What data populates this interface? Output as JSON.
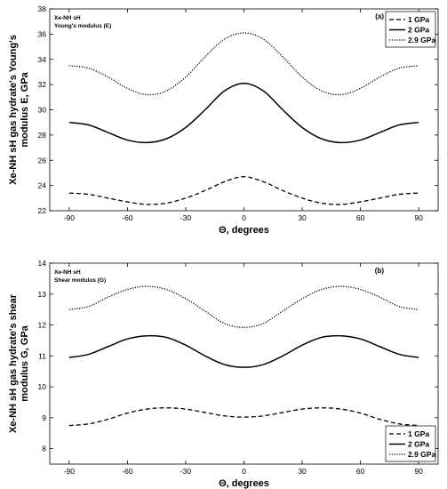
{
  "chart_data": [
    {
      "type": "line",
      "panel_label": "(a)",
      "annotation": [
        "Xe-NH sH",
        "Young's modulus (E)"
      ],
      "xlabel": "Θ, degrees",
      "ylabel": [
        "Xe-NH sH gas hydrate's Young's",
        "modulus E, GPa"
      ],
      "xlim": [
        -100,
        100
      ],
      "ylim": [
        22,
        38
      ],
      "xticks": [
        -90,
        -60,
        -30,
        0,
        30,
        60,
        90
      ],
      "yticks": [
        22,
        24,
        26,
        28,
        30,
        32,
        34,
        36,
        38
      ],
      "legend_position": "top-right",
      "series": [
        {
          "name": "1 GPa",
          "style": "dashed",
          "x": [
            -90,
            -80,
            -70,
            -60,
            -50,
            -40,
            -30,
            -20,
            -10,
            0,
            10,
            20,
            30,
            40,
            50,
            60,
            70,
            80,
            90
          ],
          "y": [
            23.4,
            23.3,
            23.0,
            22.7,
            22.5,
            22.6,
            23.0,
            23.6,
            24.3,
            24.7,
            24.3,
            23.6,
            23.0,
            22.6,
            22.5,
            22.7,
            23.0,
            23.3,
            23.4
          ]
        },
        {
          "name": "2 GPa",
          "style": "solid",
          "x": [
            -90,
            -80,
            -70,
            -60,
            -50,
            -40,
            -30,
            -20,
            -10,
            0,
            10,
            20,
            30,
            40,
            50,
            60,
            70,
            80,
            90
          ],
          "y": [
            29.0,
            28.8,
            28.2,
            27.6,
            27.4,
            27.7,
            28.6,
            30.0,
            31.5,
            32.1,
            31.5,
            30.0,
            28.6,
            27.7,
            27.4,
            27.6,
            28.2,
            28.8,
            29.0
          ]
        },
        {
          "name": "2.9 GPa",
          "style": "dotted",
          "x": [
            -90,
            -80,
            -70,
            -60,
            -50,
            -40,
            -30,
            -20,
            -10,
            0,
            10,
            20,
            30,
            40,
            50,
            60,
            70,
            80,
            90
          ],
          "y": [
            33.5,
            33.3,
            32.6,
            31.7,
            31.2,
            31.5,
            32.6,
            34.2,
            35.6,
            36.1,
            35.6,
            34.2,
            32.6,
            31.5,
            31.2,
            31.7,
            32.6,
            33.3,
            33.5
          ]
        }
      ]
    },
    {
      "type": "line",
      "panel_label": "(b)",
      "annotation": [
        "Xe-NH sH",
        "Shear modulus (G)"
      ],
      "xlabel": "Θ, degrees",
      "ylabel": [
        "Xe-NH sH gas hydrate's shear",
        "modulus G, GPa"
      ],
      "xlim": [
        -100,
        100
      ],
      "ylim": [
        7.5,
        14
      ],
      "xticks": [
        -90,
        -60,
        -30,
        0,
        30,
        60,
        90
      ],
      "yticks": [
        8,
        9,
        10,
        11,
        12,
        13,
        14
      ],
      "legend_position": "bottom-right",
      "series": [
        {
          "name": "1 GPa",
          "style": "dashed",
          "x": [
            -90,
            -80,
            -70,
            -60,
            -50,
            -40,
            -30,
            -20,
            -10,
            0,
            10,
            20,
            30,
            40,
            50,
            60,
            70,
            80,
            90
          ],
          "y": [
            8.75,
            8.8,
            8.95,
            9.15,
            9.28,
            9.32,
            9.28,
            9.17,
            9.06,
            9.02,
            9.06,
            9.17,
            9.28,
            9.32,
            9.28,
            9.15,
            8.95,
            8.8,
            8.75
          ]
        },
        {
          "name": "2 GPa",
          "style": "solid",
          "x": [
            -90,
            -80,
            -70,
            -60,
            -50,
            -40,
            -30,
            -20,
            -10,
            0,
            10,
            20,
            30,
            40,
            50,
            60,
            70,
            80,
            90
          ],
          "y": [
            10.95,
            11.05,
            11.3,
            11.55,
            11.65,
            11.6,
            11.35,
            11.0,
            10.72,
            10.63,
            10.72,
            11.0,
            11.35,
            11.6,
            11.65,
            11.55,
            11.3,
            11.05,
            10.95
          ]
        },
        {
          "name": "2.9 GPa",
          "style": "dotted",
          "x": [
            -90,
            -80,
            -70,
            -60,
            -50,
            -40,
            -30,
            -20,
            -10,
            0,
            10,
            20,
            30,
            40,
            50,
            60,
            70,
            80,
            90
          ],
          "y": [
            12.5,
            12.6,
            12.9,
            13.15,
            13.25,
            13.15,
            12.85,
            12.45,
            12.05,
            11.92,
            12.05,
            12.45,
            12.85,
            13.15,
            13.25,
            13.15,
            12.9,
            12.6,
            12.5
          ]
        }
      ]
    }
  ]
}
